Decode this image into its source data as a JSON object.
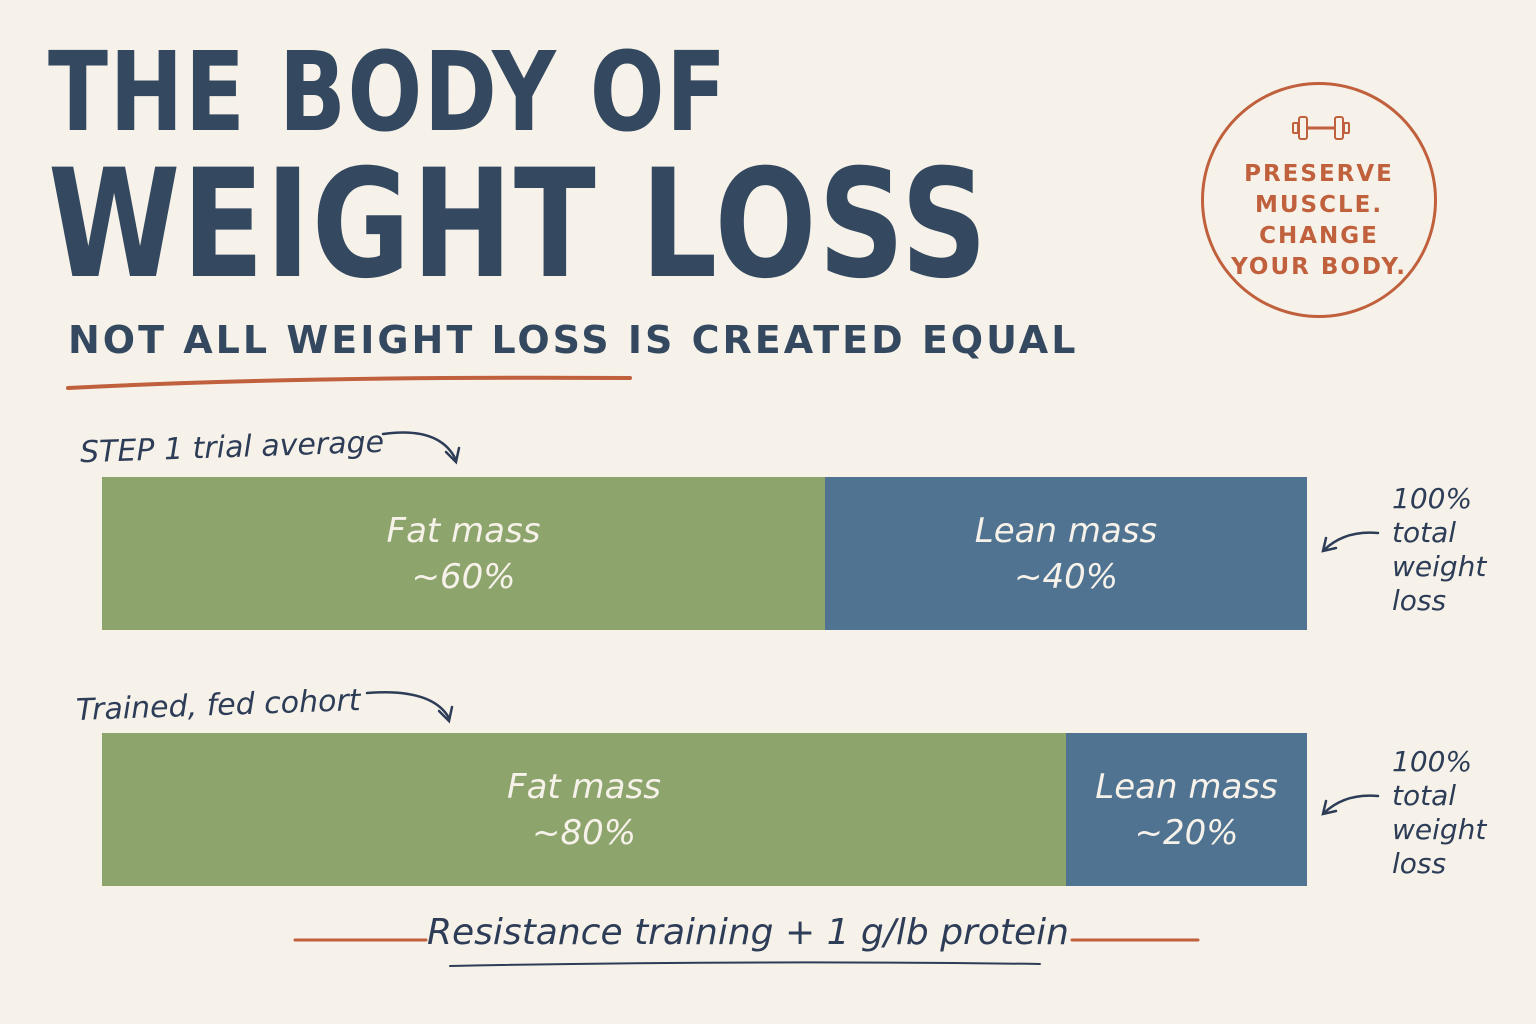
{
  "header": {
    "title_line1": "THE BODY OF",
    "title_line2": "WEIGHT LOSS",
    "subtitle": "NOT ALL WEIGHT LOSS IS CREATED EQUAL"
  },
  "badge": {
    "icon": "dumbbell-icon",
    "lines": [
      "PRESERVE",
      "MUSCLE.",
      "CHANGE",
      "YOUR BODY."
    ]
  },
  "colors": {
    "background": "#f6f2ea",
    "title": "#34495f",
    "accent": "#c0603c",
    "fat": "#8ea46d",
    "lean": "#4f7391"
  },
  "chart_data": {
    "type": "bar",
    "orientation": "horizontal-stacked-100",
    "categories": [
      "STEP 1 trial average",
      "Trained, fed cohort"
    ],
    "series": [
      {
        "name": "Fat mass",
        "values": [
          60,
          80
        ],
        "labels": [
          "~60%",
          "~80%"
        ]
      },
      {
        "name": "Lean mass",
        "values": [
          40,
          20
        ],
        "labels": [
          "~40%",
          "~20%"
        ]
      }
    ],
    "total_note": [
      "100%",
      "total",
      "weight",
      "loss"
    ],
    "xlim": [
      0,
      100
    ]
  },
  "footer": {
    "text": "Resistance training + 1 g/lb protein"
  }
}
